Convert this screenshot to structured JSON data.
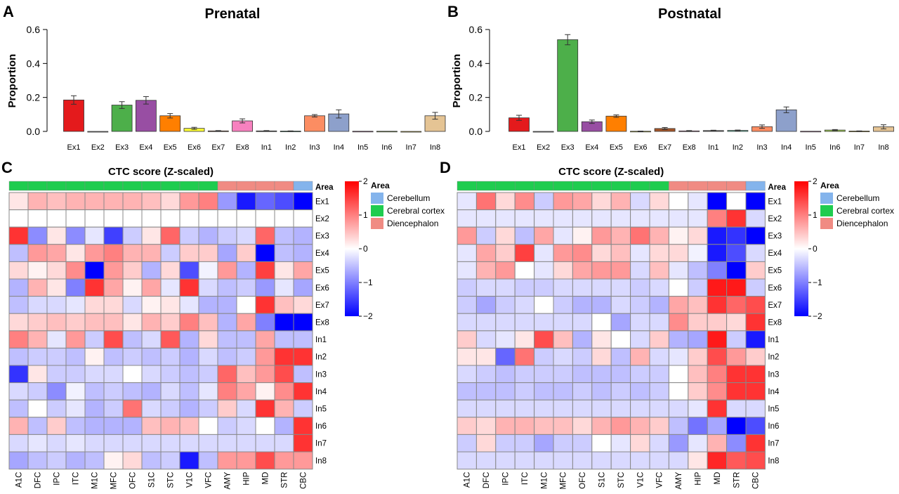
{
  "panels": {
    "A": {
      "letter": "A"
    },
    "B": {
      "letter": "B"
    },
    "C": {
      "letter": "C"
    },
    "D": {
      "letter": "D"
    }
  },
  "colors": {
    "Ex1": "#e41a1c",
    "Ex2": "#9e9e9e",
    "Ex3": "#4daf4a",
    "Ex4": "#984ea3",
    "Ex5": "#ff7f00",
    "Ex6": "#ffff33",
    "Ex7": "#a65628",
    "Ex8": "#f781bf",
    "In1": "#666666",
    "In2": "#66c2a5",
    "In3": "#fc8d62",
    "In4": "#8da0cb",
    "In5": "#e78ac3",
    "In6": "#a6d854",
    "In7": "#ffd92f",
    "In8": "#e5c494",
    "cerebellum": "#84b4ec",
    "cerebral_cortex": "#1fcc4f",
    "diencephalon": "#f08b83",
    "heat_low": "#0000ff",
    "heat_mid": "#ffffff",
    "heat_high": "#ff0000"
  },
  "chart_data": [
    {
      "type": "bar",
      "panel": "A",
      "title": "Prenatal",
      "ylabel": "Proportion",
      "ylim": [
        0,
        0.6
      ],
      "yticks": [
        "0.0",
        "0.2",
        "0.4",
        "0.6"
      ],
      "categories": [
        "Ex1",
        "Ex2",
        "Ex3",
        "Ex4",
        "Ex5",
        "Ex6",
        "Ex7",
        "Ex8",
        "In1",
        "In2",
        "In3",
        "In4",
        "In5",
        "In6",
        "In7",
        "In8"
      ],
      "values": [
        0.185,
        0.0,
        0.155,
        0.183,
        0.092,
        0.018,
        0.003,
        0.062,
        0.003,
        0.002,
        0.092,
        0.103,
        0.001,
        0.001,
        0.0,
        0.092
      ],
      "errors": [
        0.025,
        0.0,
        0.02,
        0.022,
        0.013,
        0.006,
        0.002,
        0.012,
        0.002,
        0.001,
        0.007,
        0.024,
        0.0,
        0.0,
        0.0,
        0.02
      ]
    },
    {
      "type": "bar",
      "panel": "B",
      "title": "Postnatal",
      "ylabel": "Proportion",
      "ylim": [
        0,
        0.6
      ],
      "yticks": [
        "0.0",
        "0.2",
        "0.4",
        "0.6"
      ],
      "categories": [
        "Ex1",
        "Ex2",
        "Ex3",
        "Ex4",
        "Ex5",
        "Ex6",
        "Ex7",
        "Ex8",
        "In1",
        "In2",
        "In3",
        "In4",
        "In5",
        "In6",
        "In7",
        "In8"
      ],
      "values": [
        0.08,
        0.0,
        0.54,
        0.057,
        0.09,
        0.001,
        0.017,
        0.003,
        0.005,
        0.006,
        0.028,
        0.127,
        0.001,
        0.008,
        0.002,
        0.027
      ],
      "errors": [
        0.015,
        0.0,
        0.03,
        0.01,
        0.007,
        0.001,
        0.006,
        0.002,
        0.002,
        0.002,
        0.01,
        0.017,
        0.0,
        0.003,
        0.001,
        0.012
      ]
    },
    {
      "type": "heatmap",
      "panel": "C",
      "title": "CTC score (Z-scaled)",
      "area_label": "Area",
      "rows": [
        "Ex1",
        "Ex2",
        "Ex3",
        "Ex4",
        "Ex5",
        "Ex6",
        "Ex7",
        "Ex8",
        "In1",
        "In2",
        "In3",
        "In4",
        "In5",
        "In6",
        "In7",
        "In8"
      ],
      "cols": [
        "A1C",
        "DFC",
        "IPC",
        "ITC",
        "M1C",
        "MFC",
        "OFC",
        "S1C",
        "STC",
        "V1C",
        "VFC",
        "AMY",
        "HIP",
        "MD",
        "STR",
        "CBC"
      ],
      "col_area": [
        "cerebral_cortex",
        "cerebral_cortex",
        "cerebral_cortex",
        "cerebral_cortex",
        "cerebral_cortex",
        "cerebral_cortex",
        "cerebral_cortex",
        "cerebral_cortex",
        "cerebral_cortex",
        "cerebral_cortex",
        "cerebral_cortex",
        "diencephalon",
        "diencephalon",
        "diencephalon",
        "diencephalon",
        "cerebellum"
      ],
      "values": [
        [
          0.2,
          0.6,
          0.5,
          0.6,
          0.6,
          0.6,
          0.6,
          0.5,
          0.3,
          0.8,
          1.0,
          -0.8,
          -1.8,
          -1.2,
          -1.4,
          -2.0
        ],
        [
          0,
          0,
          0,
          0,
          0,
          0,
          0,
          0,
          0,
          0,
          0,
          0,
          0,
          0,
          0,
          0
        ],
        [
          1.6,
          -0.9,
          0.2,
          -0.9,
          -0.2,
          -1.5,
          -0.4,
          0.2,
          1.2,
          -0.4,
          -0.6,
          -0.4,
          -0.3,
          1.2,
          -0.5,
          -0.6
        ],
        [
          -0.5,
          0.8,
          0.7,
          0.2,
          0.8,
          1.0,
          0.6,
          0.6,
          -0.4,
          0.4,
          0.4,
          -0.7,
          0.4,
          -2.0,
          -0.5,
          -0.6
        ],
        [
          0.3,
          0.1,
          0.3,
          0.9,
          -2.0,
          0.8,
          0.4,
          -0.6,
          0.3,
          -1.4,
          -0.1,
          0.8,
          -0.6,
          1.5,
          0.2,
          0.7
        ],
        [
          -0.6,
          0.6,
          0.2,
          -1.0,
          1.6,
          0.7,
          0.1,
          0.7,
          -0.2,
          1.6,
          -0.3,
          -0.5,
          -0.4,
          -0.8,
          -0.2,
          -0.7
        ],
        [
          -0.5,
          -0.3,
          -0.3,
          -0.2,
          0.3,
          0.3,
          -0.3,
          0.1,
          0.2,
          -0.2,
          -0.6,
          -0.6,
          0.0,
          1.6,
          0.5,
          0.3
        ],
        [
          0.3,
          0.4,
          0.5,
          0.4,
          0.5,
          0.5,
          0.2,
          0.6,
          0.4,
          1.0,
          0.5,
          -0.6,
          0.7,
          -1.0,
          -2.0,
          -2.0
        ],
        [
          1.0,
          0.6,
          -0.2,
          0.8,
          -0.4,
          1.4,
          -0.5,
          -0.3,
          1.3,
          -0.6,
          0.3,
          -0.5,
          -0.5,
          0.7,
          -0.5,
          -0.5
        ],
        [
          -0.5,
          -0.4,
          -0.4,
          -0.5,
          0.1,
          -0.5,
          -0.4,
          -0.5,
          -0.4,
          -0.6,
          -0.3,
          -0.5,
          -0.4,
          0.8,
          1.6,
          1.6
        ],
        [
          -1.6,
          0.2,
          -0.4,
          -0.4,
          -0.3,
          -0.3,
          0.0,
          -0.3,
          -0.4,
          -0.5,
          -0.4,
          1.2,
          0.5,
          0.8,
          1.4,
          -0.5
        ],
        [
          -0.3,
          -0.4,
          -0.9,
          -0.1,
          -0.5,
          -0.4,
          -0.5,
          -0.6,
          -0.3,
          -0.5,
          -0.2,
          1.0,
          0.7,
          0.1,
          0.9,
          1.6
        ],
        [
          -0.5,
          0.0,
          -0.4,
          -0.2,
          -0.6,
          -0.4,
          1.1,
          -0.3,
          -0.4,
          -0.6,
          -0.4,
          0.4,
          -0.3,
          1.6,
          0.6,
          -0.4
        ],
        [
          0.6,
          -0.5,
          0.4,
          -0.5,
          -0.6,
          -0.6,
          -0.6,
          0.5,
          0.6,
          0.5,
          0.0,
          -0.4,
          -0.3,
          0.0,
          -0.6,
          1.6
        ],
        [
          -0.3,
          -0.2,
          -0.3,
          -0.2,
          -0.3,
          -0.3,
          -0.3,
          -0.3,
          -0.3,
          -0.3,
          -0.3,
          -0.3,
          -0.3,
          -0.3,
          -0.3,
          1.6
        ],
        [
          -0.7,
          -0.5,
          -0.4,
          -0.6,
          -0.5,
          0.1,
          0.3,
          -0.5,
          -0.4,
          -1.8,
          -0.5,
          0.8,
          0.8,
          1.4,
          0.8,
          0.8
        ]
      ],
      "colorbar": {
        "range": [
          -2,
          2
        ],
        "ticks": [
          "2",
          "1",
          "0",
          "−1",
          "−2"
        ]
      },
      "legend": {
        "title": "Area",
        "items": [
          "Cerebellum",
          "Cerebral cortex",
          "Diencephalon"
        ]
      }
    },
    {
      "type": "heatmap",
      "panel": "D",
      "title": "CTC score (Z-scaled)",
      "area_label": "Area",
      "rows": [
        "Ex1",
        "Ex2",
        "Ex3",
        "Ex4",
        "Ex5",
        "Ex6",
        "Ex7",
        "Ex8",
        "In1",
        "In2",
        "In3",
        "In4",
        "In5",
        "In6",
        "In7",
        "In8"
      ],
      "cols": [
        "A1C",
        "DFC",
        "IPC",
        "ITC",
        "M1C",
        "MFC",
        "OFC",
        "S1C",
        "STC",
        "V1C",
        "VFC",
        "AMY",
        "HIP",
        "MD",
        "STR",
        "CBC"
      ],
      "col_area": [
        "cerebral_cortex",
        "cerebral_cortex",
        "cerebral_cortex",
        "cerebral_cortex",
        "cerebral_cortex",
        "cerebral_cortex",
        "cerebral_cortex",
        "cerebral_cortex",
        "cerebral_cortex",
        "cerebral_cortex",
        "cerebral_cortex",
        "diencephalon",
        "diencephalon",
        "diencephalon",
        "diencephalon",
        "cerebellum"
      ],
      "values": [
        [
          -0.2,
          1.1,
          0.3,
          0.9,
          -0.4,
          0.8,
          0.7,
          0.3,
          0.6,
          -0.3,
          0.3,
          0.0,
          -0.2,
          -2.0,
          0.0,
          -2.0
        ],
        [
          -0.2,
          -0.2,
          -0.2,
          -0.2,
          -0.2,
          -0.2,
          -0.2,
          -0.2,
          -0.2,
          -0.2,
          -0.2,
          -0.2,
          -0.2,
          1.0,
          1.6,
          -0.3
        ],
        [
          0.8,
          -0.4,
          0.3,
          -0.5,
          0.7,
          -0.2,
          0.1,
          0.8,
          0.6,
          1.1,
          0.6,
          0.1,
          0.3,
          -1.8,
          -1.6,
          -2.0
        ],
        [
          -0.2,
          0.7,
          0.4,
          1.5,
          -0.2,
          0.8,
          0.9,
          0.3,
          0.5,
          -0.2,
          0.3,
          0.3,
          -0.1,
          -1.8,
          -1.4,
          -0.3
        ],
        [
          -0.2,
          0.6,
          0.8,
          0.0,
          -0.2,
          0.3,
          0.7,
          0.8,
          0.8,
          -0.3,
          0.5,
          -0.2,
          -0.5,
          -1.0,
          -2.0,
          0.4
        ],
        [
          -0.4,
          -0.3,
          -0.3,
          -0.4,
          -0.4,
          -0.3,
          -0.3,
          -0.3,
          -0.3,
          -0.4,
          -0.3,
          0.0,
          -0.4,
          1.8,
          1.8,
          -0.4
        ],
        [
          -0.4,
          -0.7,
          -0.4,
          -0.3,
          0.0,
          -0.4,
          -0.6,
          -0.6,
          -0.3,
          -0.4,
          -0.6,
          0.7,
          0.5,
          1.6,
          1.2,
          1.4
        ],
        [
          -0.3,
          -0.3,
          -0.3,
          -0.3,
          -0.3,
          -0.3,
          -0.3,
          0.0,
          -0.7,
          -0.3,
          -0.3,
          0.9,
          0.4,
          0.4,
          0.3,
          1.6
        ],
        [
          0.4,
          -0.3,
          -0.2,
          0.2,
          1.4,
          0.5,
          -0.6,
          0.2,
          0.0,
          -0.3,
          0.4,
          -0.6,
          -0.7,
          1.8,
          -0.4,
          -1.8
        ],
        [
          0.2,
          0.2,
          -1.2,
          1.1,
          -0.4,
          -0.3,
          -0.4,
          0.3,
          -0.5,
          0.6,
          -0.3,
          -0.2,
          0.4,
          1.4,
          0.8,
          0.4
        ],
        [
          -0.3,
          -0.4,
          -0.5,
          -0.4,
          -0.4,
          -0.4,
          -0.5,
          -0.5,
          -0.5,
          -0.4,
          -0.4,
          0.0,
          0.5,
          1.0,
          1.6,
          1.6
        ],
        [
          -0.5,
          -0.5,
          -0.5,
          -0.4,
          -0.5,
          -0.5,
          -0.4,
          -0.5,
          -0.4,
          -0.5,
          -0.4,
          0.0,
          0.4,
          0.9,
          1.6,
          1.6
        ],
        [
          -0.3,
          -0.3,
          -0.3,
          -0.3,
          -0.3,
          -0.3,
          -0.3,
          -0.3,
          -0.3,
          -0.3,
          -0.3,
          -0.3,
          -0.2,
          1.6,
          -0.3,
          -0.3
        ],
        [
          0.4,
          0.3,
          0.6,
          0.6,
          0.5,
          0.5,
          0.3,
          0.6,
          0.8,
          0.6,
          0.4,
          -0.5,
          -1.1,
          -0.7,
          -2.0,
          -1.4
        ],
        [
          -0.4,
          0.3,
          -0.4,
          -0.4,
          -0.7,
          -0.4,
          -0.4,
          0.0,
          -0.2,
          0.3,
          -0.3,
          -0.8,
          -0.2,
          0.6,
          -0.9,
          1.6
        ],
        [
          -0.3,
          -0.3,
          -0.3,
          -0.3,
          -0.3,
          -0.3,
          -0.3,
          -0.3,
          -0.3,
          -0.3,
          -0.3,
          -0.3,
          0.2,
          1.7,
          1.3,
          1.4
        ]
      ],
      "colorbar": {
        "range": [
          -2,
          2
        ],
        "ticks": [
          "2",
          "1",
          "0",
          "−1",
          "−2"
        ]
      },
      "legend": {
        "title": "Area",
        "items": [
          "Cerebellum",
          "Cerebral cortex",
          "Diencephalon"
        ]
      }
    }
  ]
}
